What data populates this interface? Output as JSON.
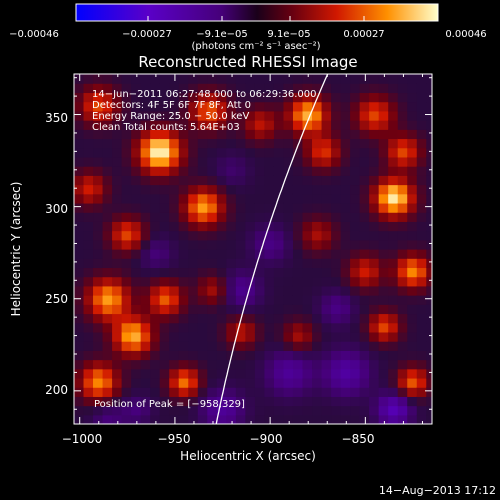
{
  "colorbar": {
    "ticks": [
      "−0.00046",
      "−0.00027",
      "−9.1e−05",
      "9.1e−05",
      "0.00027",
      "0.00046"
    ],
    "unit_label": "(photons cm⁻² s⁻¹ asec⁻²)"
  },
  "title": "Reconstructed RHESSI Image",
  "info": {
    "time_range": "14−Jun−2011 06:27:48.000 to 06:29:36.000",
    "detectors": "Detectors: 4F 5F 6F 7F 8F, Att 0",
    "energy": "Energy Range: 25.0 − 50.0 keV",
    "clean": "Clean    Total counts: 5.64E+03"
  },
  "peak_text": "Position of Peak = [−958,329]",
  "axes": {
    "xlabel": "Heliocentric X (arcsec)",
    "ylabel": "Heliocentric Y (arcsec)",
    "x_ticks": [
      "−1000",
      "−950",
      "−900",
      "−850"
    ],
    "y_ticks": [
      "200",
      "250",
      "300",
      "350"
    ],
    "x_range": [
      -1003,
      -815
    ],
    "y_range": [
      182,
      372
    ]
  },
  "footer_date": "14−Aug−2013 17:12",
  "colors": {
    "background": "#000000",
    "text": "#ffffff",
    "limb": "#ffffff"
  },
  "blobs": [
    {
      "x": -958,
      "y": 330,
      "a": 1.0,
      "r": 11
    },
    {
      "x": -932,
      "y": 352,
      "a": 0.6,
      "r": 10
    },
    {
      "x": -935,
      "y": 300,
      "a": 0.75,
      "r": 10
    },
    {
      "x": -975,
      "y": 285,
      "a": 0.55,
      "r": 9
    },
    {
      "x": -990,
      "y": 355,
      "a": 0.55,
      "r": 10
    },
    {
      "x": -995,
      "y": 310,
      "a": 0.45,
      "r": 9
    },
    {
      "x": -985,
      "y": 250,
      "a": 0.75,
      "r": 11
    },
    {
      "x": -972,
      "y": 230,
      "a": 0.8,
      "r": 10
    },
    {
      "x": -990,
      "y": 205,
      "a": 0.7,
      "r": 10
    },
    {
      "x": -955,
      "y": 250,
      "a": 0.6,
      "r": 9
    },
    {
      "x": -945,
      "y": 205,
      "a": 0.65,
      "r": 8
    },
    {
      "x": -930,
      "y": 255,
      "a": 0.35,
      "r": 8
    },
    {
      "x": -905,
      "y": 345,
      "a": 0.4,
      "r": 9
    },
    {
      "x": -880,
      "y": 350,
      "a": 0.8,
      "r": 10
    },
    {
      "x": -872,
      "y": 330,
      "a": 0.5,
      "r": 9
    },
    {
      "x": -845,
      "y": 350,
      "a": 0.55,
      "r": 10
    },
    {
      "x": -835,
      "y": 305,
      "a": 0.95,
      "r": 10
    },
    {
      "x": -830,
      "y": 330,
      "a": 0.55,
      "r": 9
    },
    {
      "x": -850,
      "y": 265,
      "a": 0.45,
      "r": 9
    },
    {
      "x": -825,
      "y": 265,
      "a": 0.7,
      "r": 9
    },
    {
      "x": -840,
      "y": 235,
      "a": 0.55,
      "r": 8
    },
    {
      "x": -825,
      "y": 205,
      "a": 0.6,
      "r": 8
    },
    {
      "x": -875,
      "y": 285,
      "a": 0.35,
      "r": 9
    },
    {
      "x": -885,
      "y": 230,
      "a": 0.35,
      "r": 8
    },
    {
      "x": -915,
      "y": 232,
      "a": 0.4,
      "r": 8
    },
    {
      "x": -900,
      "y": 280,
      "a": -0.25,
      "r": 10
    },
    {
      "x": -915,
      "y": 255,
      "a": -0.3,
      "r": 10
    },
    {
      "x": -890,
      "y": 210,
      "a": -0.35,
      "r": 12
    },
    {
      "x": -860,
      "y": 210,
      "a": -0.4,
      "r": 12
    },
    {
      "x": -835,
      "y": 190,
      "a": -0.5,
      "r": 9
    },
    {
      "x": -925,
      "y": 190,
      "a": -0.35,
      "r": 11
    },
    {
      "x": -960,
      "y": 275,
      "a": -0.2,
      "r": 9
    },
    {
      "x": -985,
      "y": 185,
      "a": -0.2,
      "r": 9
    },
    {
      "x": -865,
      "y": 245,
      "a": -0.25,
      "r": 9
    },
    {
      "x": -920,
      "y": 320,
      "a": -0.15,
      "r": 9
    },
    {
      "x": -970,
      "y": 190,
      "a": -0.2,
      "r": 8
    }
  ]
}
